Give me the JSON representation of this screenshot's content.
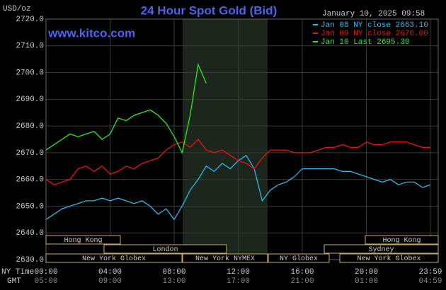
{
  "chart_data": {
    "type": "line",
    "title": "24 Hour Spot Gold (Bid)",
    "y_label": "USD/oz",
    "timestamp": "January 10, 2025 09:58",
    "watermark": "www.kitco.com",
    "x_label": "NY Time",
    "x2_label": "GMT",
    "x": [
      0,
      0.5,
      1,
      1.5,
      2,
      2.5,
      3,
      3.5,
      4,
      4.5,
      5,
      5.5,
      6,
      6.5,
      7,
      7.5,
      8,
      8.5,
      9,
      9.5,
      10,
      10.5,
      11,
      11.5,
      12,
      12.5,
      13,
      13.5,
      14,
      14.5,
      15,
      15.5,
      16,
      16.5,
      17,
      17.5,
      18,
      18.5,
      19,
      19.5,
      20,
      20.5,
      21,
      21.5,
      22,
      22.5,
      23,
      23.5,
      24
    ],
    "series": [
      {
        "name": "Jan 08 NY close 2663.10",
        "color": "#22bbee",
        "values": [
          2645,
          2647,
          2649,
          2650,
          2651,
          2652,
          2652,
          2653,
          2652,
          2653,
          2652,
          2651,
          2652,
          2650,
          2647,
          2649,
          2645,
          2650,
          2656,
          2660,
          2665,
          2663,
          2666,
          2664,
          2667,
          2669,
          2664,
          2652,
          2656,
          2658,
          2659,
          2661,
          2664,
          2664,
          2664,
          2664,
          2664,
          2663,
          2663,
          2662,
          2661,
          2660,
          2659,
          2660,
          2658,
          2659,
          2659,
          2657,
          2658
        ]
      },
      {
        "name": "Jan 09 NY close 2670.00",
        "color": "#ee1111",
        "values": [
          2660,
          2658,
          2659,
          2660,
          2664,
          2665,
          2663,
          2665,
          2662,
          2663,
          2665,
          2664,
          2666,
          2667,
          2668,
          2671,
          2673,
          2674,
          2672,
          2675,
          2671,
          2670,
          2671,
          2669,
          2667,
          2666,
          2664,
          2668,
          2671,
          2671,
          2671,
          2670,
          2670,
          2670,
          2671,
          2672,
          2672,
          2673,
          2672,
          2672,
          2674,
          2673,
          2673,
          2674,
          2674,
          2674,
          2673,
          2672,
          2672
        ]
      },
      {
        "name": "Jan 10 Last 2695.30",
        "color": "#22ee22",
        "values": [
          2671,
          2673,
          2675,
          2677,
          2676,
          2677,
          2678,
          2675,
          2677,
          2683,
          2682,
          2684,
          2685,
          2686,
          2684,
          2681,
          2676,
          2670,
          2684,
          2703,
          2696,
          null,
          null,
          null,
          null,
          null,
          null,
          null,
          null,
          null,
          null,
          null,
          null,
          null,
          null,
          null,
          null,
          null,
          null,
          null,
          null,
          null,
          null,
          null,
          null,
          null,
          null,
          null,
          null
        ]
      }
    ],
    "xlim": [
      0,
      24
    ],
    "xticks": [
      {
        "value": 0,
        "label": "00:00"
      },
      {
        "value": 4,
        "label": "04:00"
      },
      {
        "value": 8,
        "label": "08:00"
      },
      {
        "value": 12,
        "label": "12:00"
      },
      {
        "value": 16,
        "label": "16:00"
      },
      {
        "value": 20,
        "label": "20:00"
      },
      {
        "value": 24,
        "label": "23:59"
      }
    ],
    "x2ticks": [
      {
        "value": 0,
        "label": "05:00"
      },
      {
        "value": 4,
        "label": "09:00"
      },
      {
        "value": 8,
        "label": "13:00"
      },
      {
        "value": 12,
        "label": "17:00"
      },
      {
        "value": 16,
        "label": "21:00"
      },
      {
        "value": 20,
        "label": "01:00"
      },
      {
        "value": 24,
        "label": "04:59"
      }
    ],
    "ylim": [
      2630,
      2720
    ],
    "yticks": [
      {
        "value": 2630,
        "label": "2630.0"
      },
      {
        "value": 2640,
        "label": "2640.0"
      },
      {
        "value": 2650,
        "label": "2650.0"
      },
      {
        "value": 2660,
        "label": "2660.0"
      },
      {
        "value": 2670,
        "label": "2670.0"
      },
      {
        "value": 2680,
        "label": "2680.0"
      },
      {
        "value": 2690,
        "label": "2690.0"
      },
      {
        "value": 2700,
        "label": "2700.0"
      },
      {
        "value": 2710,
        "label": "2710.0"
      },
      {
        "value": 2720,
        "label": "2720.0"
      }
    ],
    "grid": true,
    "sessions": [
      "Hong Kong",
      "London",
      "New York Globex",
      "New York NYMEX",
      "NY Globex",
      "Hong Kong",
      "Sydney",
      "New York Globex"
    ]
  }
}
